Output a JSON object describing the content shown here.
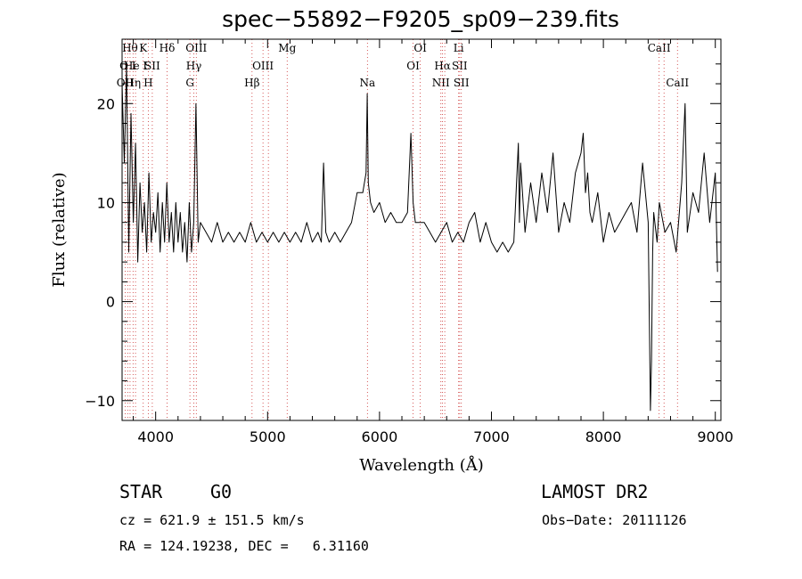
{
  "chart_data": {
    "type": "line",
    "title": "spec−55892−F9205_sp09−239.fits",
    "xlabel": "Wavelength (Å)",
    "ylabel": "Flux (relative)",
    "xlim": [
      3700,
      9050
    ],
    "ylim": [
      -12,
      26.5
    ],
    "xticks": [
      4000,
      5000,
      6000,
      7000,
      8000,
      9000
    ],
    "yticks": [
      -10,
      0,
      10,
      20
    ],
    "xtick_labels": [
      "4000",
      "5000",
      "6000",
      "7000",
      "8000",
      "9000"
    ],
    "ytick_labels": [
      "−10",
      "0",
      "10",
      "20"
    ],
    "series": [
      {
        "x": [
          3700,
          3720,
          3740,
          3760,
          3780,
          3800,
          3820,
          3840,
          3860,
          3880,
          3900,
          3920,
          3940,
          3960,
          3980,
          4000,
          4020,
          4040,
          4060,
          4080,
          4100,
          4120,
          4140,
          4160,
          4180,
          4200,
          4220,
          4240,
          4260,
          4280,
          4300,
          4320,
          4340,
          4360,
          4380,
          4400,
          4450,
          4500,
          4550,
          4600,
          4650,
          4700,
          4750,
          4800,
          4850,
          4900,
          4950,
          5000,
          5050,
          5100,
          5150,
          5200,
          5250,
          5300,
          5350,
          5400,
          5450,
          5480,
          5500,
          5520,
          5550,
          5600,
          5650,
          5700,
          5750,
          5800,
          5850,
          5880,
          5890,
          5900,
          5920,
          5950,
          6000,
          6050,
          6100,
          6150,
          6200,
          6250,
          6280,
          6300,
          6320,
          6350,
          6400,
          6450,
          6500,
          6550,
          6600,
          6650,
          6700,
          6750,
          6800,
          6850,
          6900,
          6950,
          7000,
          7050,
          7100,
          7150,
          7200,
          7240,
          7250,
          7260,
          7300,
          7350,
          7400,
          7450,
          7500,
          7550,
          7600,
          7650,
          7700,
          7750,
          7800,
          7820,
          7840,
          7860,
          7880,
          7900,
          7950,
          8000,
          8050,
          8100,
          8150,
          8200,
          8250,
          8300,
          8350,
          8400,
          8420,
          8430,
          8440,
          8450,
          8480,
          8500,
          8550,
          8600,
          8650,
          8700,
          8730,
          8750,
          8800,
          8850,
          8900,
          8950,
          9000,
          9020
        ],
        "y": [
          22,
          14,
          24,
          5,
          19,
          8,
          16,
          4,
          12,
          7,
          10,
          5,
          13,
          6,
          9,
          7,
          11,
          5,
          10,
          6,
          12,
          6,
          9,
          5,
          10,
          6,
          9,
          5,
          8,
          4,
          10,
          5,
          8,
          20,
          6,
          8,
          7,
          6,
          8,
          6,
          7,
          6,
          7,
          6,
          8,
          6,
          7,
          6,
          7,
          6,
          7,
          6,
          7,
          6,
          8,
          6,
          7,
          6,
          14,
          7,
          6,
          7,
          6,
          7,
          8,
          11,
          11,
          13,
          21,
          12,
          10,
          9,
          10,
          8,
          9,
          8,
          8,
          9,
          17,
          10,
          8,
          8,
          8,
          7,
          6,
          7,
          8,
          6,
          7,
          6,
          8,
          9,
          6,
          8,
          6,
          5,
          6,
          5,
          6,
          16,
          8,
          14,
          7,
          12,
          8,
          13,
          9,
          15,
          7,
          10,
          8,
          13,
          15,
          17,
          11,
          13,
          9,
          8,
          11,
          6,
          9,
          7,
          8,
          9,
          10,
          7,
          14,
          8,
          -11,
          -6,
          5,
          9,
          6,
          10,
          7,
          8,
          5,
          12,
          20,
          7,
          11,
          9,
          15,
          8,
          13,
          3
        ],
        "stroke": "#000000"
      }
    ],
    "line_marks": [
      {
        "x": 3727,
        "label": "OII",
        "row": 3
      },
      {
        "x": 3750,
        "label": "O I",
        "row": 2
      },
      {
        "x": 3771,
        "label": "Hθ",
        "row": 1
      },
      {
        "x": 3798,
        "label": "Hη",
        "row": 3
      },
      {
        "x": 3820,
        "label": "He I",
        "row": 2
      },
      {
        "x": 3889,
        "label": "K",
        "row": 1
      },
      {
        "x": 3934,
        "label": "H",
        "row": 3
      },
      {
        "x": 3970,
        "label": "SII",
        "row": 2
      },
      {
        "x": 4102,
        "label": "Hδ",
        "row": 1
      },
      {
        "x": 4306,
        "label": "G",
        "row": 3
      },
      {
        "x": 4341,
        "label": "Hγ",
        "row": 2
      },
      {
        "x": 4363,
        "label": "OIII",
        "row": 1
      },
      {
        "x": 4861,
        "label": "Hβ",
        "row": 3
      },
      {
        "x": 4959,
        "label": "OIII",
        "row": 2
      },
      {
        "x": 5007,
        "label": "",
        "row": 2
      },
      {
        "x": 5175,
        "label": "Mg",
        "row": 1
      },
      {
        "x": 5892,
        "label": "Na",
        "row": 3
      },
      {
        "x": 6300,
        "label": "OI",
        "row": 2
      },
      {
        "x": 6364,
        "label": "OI",
        "row": 1
      },
      {
        "x": 6548,
        "label": "NII",
        "row": 3
      },
      {
        "x": 6563,
        "label": "Hα",
        "row": 2
      },
      {
        "x": 6583,
        "label": "",
        "row": 3
      },
      {
        "x": 6707,
        "label": "Li",
        "row": 1
      },
      {
        "x": 6716,
        "label": "SII",
        "row": 2
      },
      {
        "x": 6731,
        "label": "SII",
        "row": 3
      },
      {
        "x": 8498,
        "label": "CaII",
        "row": 1
      },
      {
        "x": 8542,
        "label": "",
        "row": 1
      },
      {
        "x": 8662,
        "label": "CaII",
        "row": 3
      }
    ],
    "grid": false,
    "legend": "none"
  },
  "footer": {
    "class_label": "STAR",
    "subclass": "G0",
    "survey": "LAMOST DR2",
    "cz_line": "cz = 621.9 ± 151.5 km/s",
    "obs_date": "Obs−Date: 20111126",
    "radec": "RA = 124.19238, DEC =   6.31160"
  },
  "colors": {
    "spectrum": "#000000",
    "line_marks": "#cc3333",
    "background": "#ffffff"
  }
}
